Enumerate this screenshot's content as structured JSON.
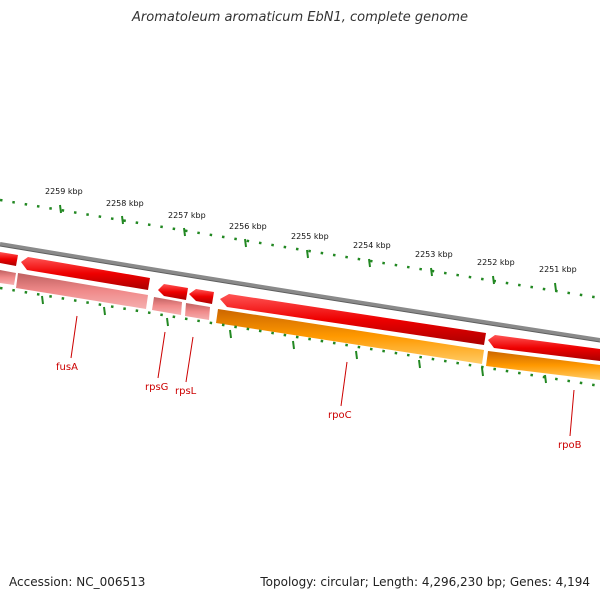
{
  "title": "Aromatoleum aromaticum EbN1, complete genome",
  "footer": {
    "accession": "Accession: NC_006513",
    "summary": "Topology: circular; Length: 4,296,230 bp; Genes: 4,194"
  },
  "ticks": [
    "2259 kbp",
    "2258 kbp",
    "2257 kbp",
    "2256 kbp",
    "2255 kbp",
    "2254 kbp",
    "2253 kbp",
    "2252 kbp",
    "2251 kbp"
  ],
  "genes": [
    "fusA",
    "rpsG",
    "rpsL",
    "rpoC",
    "rpoB"
  ],
  "colors": {
    "backbone": "#7a7a7a",
    "forward_feature": "#ee0000",
    "gene_light": "#f08080",
    "gene_orange": "#ff9900",
    "tick": "#228822",
    "label": "#cc0000"
  }
}
